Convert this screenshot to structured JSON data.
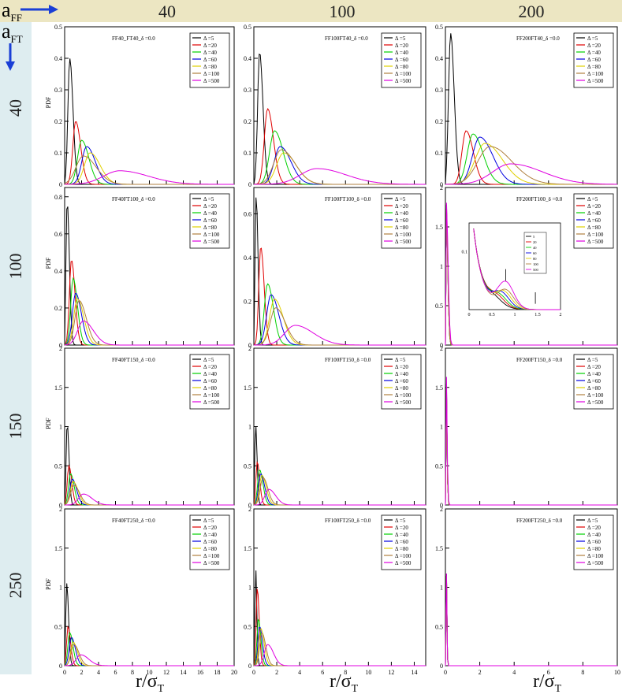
{
  "header": {
    "aff_label": "a",
    "aff_sub": "FF",
    "aft_label": "a",
    "aft_sub": "FT",
    "columns": [
      "40",
      "100",
      "200"
    ],
    "rows": [
      "40",
      "100",
      "150",
      "250"
    ]
  },
  "xlabel_main": "r/σ",
  "xlabel_sub": "T",
  "ylabel": "PDF",
  "colors": {
    "header_bg": "#ece6c2",
    "sidebar_bg": "#deedf0",
    "arrow": "#1a3fd6",
    "series": [
      "#000000",
      "#e00000",
      "#00d000",
      "#0000e0",
      "#e0d000",
      "#b08040",
      "#e000e0"
    ]
  },
  "legend_labels": [
    "Δ =5",
    "Δ =20",
    "Δ =40",
    "Δ =60",
    "Δ =80",
    "Δ =100",
    "Δ =500"
  ],
  "chart_data": [
    {
      "type": "line",
      "title": "FF40_FT40_δ =0.0",
      "xlim": [
        0,
        20
      ],
      "ylim": [
        0,
        0.5
      ],
      "yticks": [
        0,
        0.1,
        0.2,
        0.3,
        0.4,
        0.5
      ],
      "xticks": [],
      "ylabel": "PDF",
      "series": [
        {
          "name": "Δ =5",
          "peak": [
            0.6,
            0.4
          ],
          "w": 0.45
        },
        {
          "name": "Δ =20",
          "peak": [
            1.3,
            0.2
          ],
          "w": 0.7
        },
        {
          "name": "Δ =40",
          "peak": [
            2.0,
            0.14
          ],
          "w": 1.0
        },
        {
          "name": "Δ =60",
          "peak": [
            2.6,
            0.12
          ],
          "w": 1.2
        },
        {
          "name": "Δ =80",
          "peak": [
            3.0,
            0.1
          ],
          "w": 1.4
        },
        {
          "name": "Δ =100",
          "peak": [
            2.2,
            0.09
          ],
          "w": 1.8
        },
        {
          "name": "Δ =500",
          "peak": [
            6.5,
            0.043
          ],
          "w": 4.0
        }
      ]
    },
    {
      "type": "line",
      "title": "FF100FT40_δ =0.0",
      "xlim": [
        0,
        15
      ],
      "ylim": [
        0,
        0.5
      ],
      "yticks": [
        0,
        0.1,
        0.2,
        0.3,
        0.4,
        0.5
      ],
      "xticks": [],
      "ylabel": "",
      "series": [
        {
          "name": "Δ =5",
          "peak": [
            0.5,
            0.42
          ],
          "w": 0.35
        },
        {
          "name": "Δ =20",
          "peak": [
            1.2,
            0.24
          ],
          "w": 0.6
        },
        {
          "name": "Δ =40",
          "peak": [
            1.8,
            0.17
          ],
          "w": 0.9
        },
        {
          "name": "Δ =60",
          "peak": [
            2.3,
            0.12
          ],
          "w": 1.1
        },
        {
          "name": "Δ =80",
          "peak": [
            2.6,
            0.1
          ],
          "w": 1.3
        },
        {
          "name": "Δ =100",
          "peak": [
            2.4,
            0.11
          ],
          "w": 1.4
        },
        {
          "name": "Δ =500",
          "peak": [
            5.5,
            0.05
          ],
          "w": 3.0
        }
      ]
    },
    {
      "type": "line",
      "title": "FF200FT40_δ =0.0",
      "xlim": [
        0,
        10
      ],
      "ylim": [
        0,
        0.5
      ],
      "yticks": [
        0,
        0.1,
        0.2,
        0.3,
        0.4,
        0.5
      ],
      "xticks": [],
      "ylabel": "",
      "series": [
        {
          "name": "Δ =5",
          "peak": [
            0.3,
            0.48
          ],
          "w": 0.25
        },
        {
          "name": "Δ =20",
          "peak": [
            1.2,
            0.17
          ],
          "w": 0.5
        },
        {
          "name": "Δ =40",
          "peak": [
            1.6,
            0.16
          ],
          "w": 0.7
        },
        {
          "name": "Δ =60",
          "peak": [
            2.0,
            0.15
          ],
          "w": 0.9
        },
        {
          "name": "Δ =80",
          "peak": [
            2.3,
            0.13
          ],
          "w": 1.2
        },
        {
          "name": "Δ =100",
          "peak": [
            2.6,
            0.12
          ],
          "w": 1.5
        },
        {
          "name": "Δ =500",
          "peak": [
            3.8,
            0.065
          ],
          "w": 2.2
        }
      ]
    },
    {
      "type": "line",
      "title": "FF40FT100_δ =0.0",
      "xlim": [
        0,
        20
      ],
      "ylim": [
        0,
        0.85
      ],
      "yticks": [
        0,
        0.2,
        0.4,
        0.6,
        0.8
      ],
      "xticks": [],
      "ylabel": "PDF",
      "series": [
        {
          "name": "Δ =5",
          "peak": [
            0.3,
            0.78
          ],
          "w": 0.3
        },
        {
          "name": "Δ =20",
          "peak": [
            0.8,
            0.46
          ],
          "w": 0.5
        },
        {
          "name": "Δ =40",
          "peak": [
            1.0,
            0.36
          ],
          "w": 0.6
        },
        {
          "name": "Δ =60",
          "peak": [
            1.3,
            0.28
          ],
          "w": 0.8
        },
        {
          "name": "Δ =80",
          "peak": [
            1.5,
            0.25
          ],
          "w": 0.9
        },
        {
          "name": "Δ =100",
          "peak": [
            1.7,
            0.24
          ],
          "w": 1.0
        },
        {
          "name": "Δ =500",
          "peak": [
            2.2,
            0.13
          ],
          "w": 1.4
        }
      ]
    },
    {
      "type": "line",
      "title": "FF100FT100_δ =0.0",
      "xlim": [
        0,
        15
      ],
      "ylim": [
        0,
        0.72
      ],
      "yticks": [
        0,
        0.2,
        0.4,
        0.6
      ],
      "xticks": [],
      "ylabel": "",
      "series": [
        {
          "name": "Δ =5",
          "peak": [
            0.2,
            0.68
          ],
          "w": 0.2
        },
        {
          "name": "Δ =20",
          "peak": [
            0.6,
            0.45
          ],
          "w": 0.35
        },
        {
          "name": "Δ =40",
          "peak": [
            1.2,
            0.28
          ],
          "w": 0.6
        },
        {
          "name": "Δ =60",
          "peak": [
            1.5,
            0.23
          ],
          "w": 0.8
        },
        {
          "name": "Δ =80",
          "peak": [
            1.8,
            0.21
          ],
          "w": 0.9
        },
        {
          "name": "Δ =100",
          "peak": [
            1.9,
            0.17
          ],
          "w": 1.0
        },
        {
          "name": "Δ =500",
          "peak": [
            3.6,
            0.09
          ],
          "w": 1.9
        }
      ]
    },
    {
      "type": "line",
      "title": "FF200FT100_δ =0.0",
      "xlim": [
        0,
        10
      ],
      "ylim": [
        0,
        2
      ],
      "yticks": [
        0,
        0.5,
        1,
        1.5,
        2
      ],
      "xticks": [],
      "ylabel": "",
      "series": [
        {
          "name": "Δ =5",
          "peak": [
            0.05,
            1.8
          ],
          "w": 0.1
        },
        {
          "name": "Δ =20",
          "peak": [
            0.05,
            1.75
          ],
          "w": 0.1
        },
        {
          "name": "Δ =40",
          "peak": [
            0.05,
            1.7
          ],
          "w": 0.1
        },
        {
          "name": "Δ =60",
          "peak": [
            0.05,
            1.7
          ],
          "w": 0.1
        },
        {
          "name": "Δ =80",
          "peak": [
            0.05,
            1.7
          ],
          "w": 0.1
        },
        {
          "name": "Δ =100",
          "peak": [
            0.05,
            1.7
          ],
          "w": 0.1
        },
        {
          "name": "Δ =500",
          "peak": [
            0.05,
            1.82
          ],
          "w": 0.12
        }
      ],
      "inset": {
        "xlim": [
          0,
          2
        ],
        "ylim": [
          0,
          0.15
        ],
        "xticks": [
          "0",
          "0.5",
          "1",
          "1.5",
          "2"
        ],
        "ytick": "0.1",
        "legend": [
          "5",
          "20",
          "40",
          "60",
          "80",
          "100",
          "500"
        ]
      }
    },
    {
      "type": "line",
      "title": "FF40FT150_δ =0.0",
      "xlim": [
        0,
        20
      ],
      "ylim": [
        0,
        2
      ],
      "yticks": [
        0,
        0.5,
        1,
        1.5,
        2
      ],
      "xticks": [],
      "ylabel": "PDF",
      "series": [
        {
          "name": "Δ =5",
          "peak": [
            0.3,
            1.05
          ],
          "w": 0.25
        },
        {
          "name": "Δ =20",
          "peak": [
            0.5,
            0.5
          ],
          "w": 0.4
        },
        {
          "name": "Δ =40",
          "peak": [
            0.7,
            0.4
          ],
          "w": 0.5
        },
        {
          "name": "Δ =60",
          "peak": [
            0.9,
            0.33
          ],
          "w": 0.6
        },
        {
          "name": "Δ =80",
          "peak": [
            1.0,
            0.3
          ],
          "w": 0.7
        },
        {
          "name": "Δ =100",
          "peak": [
            1.1,
            0.25
          ],
          "w": 0.8
        },
        {
          "name": "Δ =500",
          "peak": [
            2.2,
            0.14
          ],
          "w": 1.2
        }
      ]
    },
    {
      "type": "line",
      "title": "FF100FT150_δ =0.0",
      "xlim": [
        0,
        15
      ],
      "ylim": [
        0,
        2
      ],
      "yticks": [
        0,
        0.5,
        1,
        1.5,
        2
      ],
      "xticks": [],
      "ylabel": "",
      "series": [
        {
          "name": "Δ =5",
          "peak": [
            0.15,
            1.05
          ],
          "w": 0.15
        },
        {
          "name": "Δ =20",
          "peak": [
            0.3,
            0.55
          ],
          "w": 0.25
        },
        {
          "name": "Δ =40",
          "peak": [
            0.5,
            0.45
          ],
          "w": 0.35
        },
        {
          "name": "Δ =60",
          "peak": [
            0.6,
            0.4
          ],
          "w": 0.4
        },
        {
          "name": "Δ =80",
          "peak": [
            0.7,
            0.38
          ],
          "w": 0.45
        },
        {
          "name": "Δ =100",
          "peak": [
            0.8,
            0.35
          ],
          "w": 0.5
        },
        {
          "name": "Δ =500",
          "peak": [
            1.3,
            0.2
          ],
          "w": 0.7
        }
      ]
    },
    {
      "type": "line",
      "title": "FF200FT150_δ =0.0",
      "xlim": [
        0,
        10
      ],
      "ylim": [
        0,
        2
      ],
      "yticks": [
        0,
        0.5,
        1,
        1.5,
        2
      ],
      "xticks": [],
      "ylabel": "",
      "series": [
        {
          "name": "Δ =5",
          "peak": [
            0.03,
            1.9
          ],
          "w": 0.06
        },
        {
          "name": "Δ =20",
          "peak": [
            0.03,
            1.85
          ],
          "w": 0.06
        },
        {
          "name": "Δ =40",
          "peak": [
            0.03,
            1.8
          ],
          "w": 0.06
        },
        {
          "name": "Δ =60",
          "peak": [
            0.03,
            1.8
          ],
          "w": 0.06
        },
        {
          "name": "Δ =80",
          "peak": [
            0.03,
            1.8
          ],
          "w": 0.06
        },
        {
          "name": "Δ =100",
          "peak": [
            0.03,
            1.8
          ],
          "w": 0.06
        },
        {
          "name": "Δ =500",
          "peak": [
            0.03,
            1.9
          ],
          "w": 0.07
        }
      ]
    },
    {
      "type": "line",
      "title": "FF40FT250_δ =0.0",
      "xlim": [
        0,
        20
      ],
      "ylim": [
        0,
        2
      ],
      "yticks": [
        0,
        0.5,
        1,
        1.5,
        2
      ],
      "xticks": [
        "0",
        "2",
        "4",
        "6",
        "8",
        "10",
        "12",
        "14",
        "16",
        "18",
        "20"
      ],
      "ylabel": "PDF",
      "series": [
        {
          "name": "Δ =5",
          "peak": [
            0.25,
            1.05
          ],
          "w": 0.25
        },
        {
          "name": "Δ =20",
          "peak": [
            0.4,
            0.5
          ],
          "w": 0.35
        },
        {
          "name": "Δ =40",
          "peak": [
            0.6,
            0.42
          ],
          "w": 0.45
        },
        {
          "name": "Δ =60",
          "peak": [
            0.8,
            0.36
          ],
          "w": 0.55
        },
        {
          "name": "Δ =80",
          "peak": [
            1.0,
            0.3
          ],
          "w": 0.6
        },
        {
          "name": "Δ =100",
          "peak": [
            1.1,
            0.27
          ],
          "w": 0.7
        },
        {
          "name": "Δ =500",
          "peak": [
            1.9,
            0.14
          ],
          "w": 1.1
        }
      ]
    },
    {
      "type": "line",
      "title": "FF100FT250_δ =0.0",
      "xlim": [
        0,
        15
      ],
      "ylim": [
        0,
        2
      ],
      "yticks": [
        0,
        0.5,
        1,
        1.5,
        2
      ],
      "xticks": [
        "0",
        "2",
        "4",
        "6",
        "8",
        "10",
        "12",
        "14"
      ],
      "ylabel": "",
      "series": [
        {
          "name": "Δ =5",
          "peak": [
            0.15,
            1.3
          ],
          "w": 0.12
        },
        {
          "name": "Δ =20",
          "peak": [
            0.3,
            1.0
          ],
          "w": 0.2
        },
        {
          "name": "Δ =40",
          "peak": [
            0.4,
            0.6
          ],
          "w": 0.25
        },
        {
          "name": "Δ =60",
          "peak": [
            0.5,
            0.5
          ],
          "w": 0.3
        },
        {
          "name": "Δ =80",
          "peak": [
            0.6,
            0.48
          ],
          "w": 0.35
        },
        {
          "name": "Δ =100",
          "peak": [
            0.7,
            0.42
          ],
          "w": 0.4
        },
        {
          "name": "Δ =500",
          "peak": [
            1.2,
            0.27
          ],
          "w": 0.6
        }
      ]
    },
    {
      "type": "line",
      "title": "FF200FT250_δ =0.0",
      "xlim": [
        0,
        10
      ],
      "ylim": [
        0,
        2
      ],
      "yticks": [
        0,
        0.5,
        1,
        1.5,
        2
      ],
      "xticks": [
        "0",
        "2",
        "4",
        "6",
        "8",
        "10"
      ],
      "ylabel": "",
      "series": [
        {
          "name": "Δ =5",
          "peak": [
            0.02,
            1.95
          ],
          "w": 0.05
        },
        {
          "name": "Δ =20",
          "peak": [
            0.02,
            1.9
          ],
          "w": 0.05
        },
        {
          "name": "Δ =40",
          "peak": [
            0.02,
            1.9
          ],
          "w": 0.05
        },
        {
          "name": "Δ =60",
          "peak": [
            0.02,
            1.9
          ],
          "w": 0.05
        },
        {
          "name": "Δ =80",
          "peak": [
            0.02,
            1.9
          ],
          "w": 0.05
        },
        {
          "name": "Δ =100",
          "peak": [
            0.02,
            1.9
          ],
          "w": 0.05
        },
        {
          "name": "Δ =500",
          "peak": [
            0.02,
            1.95
          ],
          "w": 0.05
        }
      ]
    }
  ]
}
